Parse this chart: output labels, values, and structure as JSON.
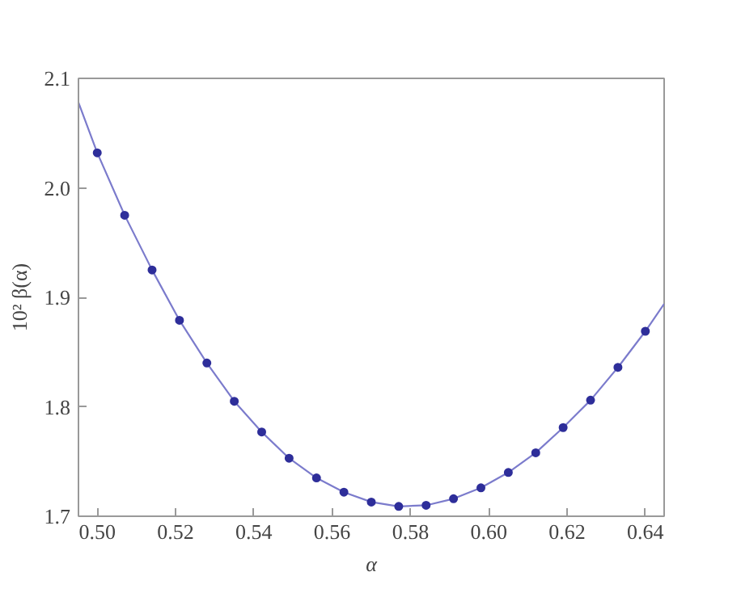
{
  "chart_data": {
    "type": "scatter",
    "xlabel": "α",
    "ylabel": "10² β(α)",
    "xlim": [
      0.4952,
      0.6448
    ],
    "ylim": [
      1.7,
      2.1
    ],
    "xticks": [
      {
        "value": 0.5,
        "label": "0.50"
      },
      {
        "value": 0.52,
        "label": "0.52"
      },
      {
        "value": 0.54,
        "label": "0.54"
      },
      {
        "value": 0.56,
        "label": "0.56"
      },
      {
        "value": 0.58,
        "label": "0.58"
      },
      {
        "value": 0.6,
        "label": "0.60"
      },
      {
        "value": 0.62,
        "label": "0.62"
      },
      {
        "value": 0.64,
        "label": "0.64"
      }
    ],
    "yticks": [
      1.7,
      1.8,
      1.9,
      {
        "value": 2.0,
        "label": "2.0"
      },
      2.1
    ],
    "grid": false,
    "series": [
      {
        "type": "line",
        "color": "#7b7bcc",
        "line_style": "solid",
        "x": [
          0.4952,
          0.5,
          0.507,
          0.514,
          0.521,
          0.528,
          0.535,
          0.542,
          0.549,
          0.556,
          0.563,
          0.57,
          0.577,
          0.584,
          0.591,
          0.598,
          0.605,
          0.612,
          0.619,
          0.626,
          0.633,
          0.64,
          0.6448
        ],
        "values": [
          2.078,
          2.032,
          1.975,
          1.925,
          1.879,
          1.84,
          1.805,
          1.777,
          1.753,
          1.735,
          1.722,
          1.713,
          1.709,
          1.71,
          1.716,
          1.726,
          1.74,
          1.758,
          1.781,
          1.806,
          1.836,
          1.869,
          1.894
        ]
      },
      {
        "marker": "circle",
        "color": "#2e2e9a",
        "x": [
          0.5,
          0.507,
          0.514,
          0.521,
          0.528,
          0.535,
          0.542,
          0.549,
          0.556,
          0.563,
          0.57,
          0.577,
          0.584,
          0.591,
          0.598,
          0.605,
          0.612,
          0.619,
          0.626,
          0.633,
          0.64
        ],
        "values": [
          2.032,
          1.975,
          1.925,
          1.879,
          1.84,
          1.805,
          1.777,
          1.753,
          1.735,
          1.722,
          1.713,
          1.709,
          1.71,
          1.716,
          1.726,
          1.74,
          1.758,
          1.781,
          1.806,
          1.836,
          1.869
        ]
      }
    ]
  }
}
